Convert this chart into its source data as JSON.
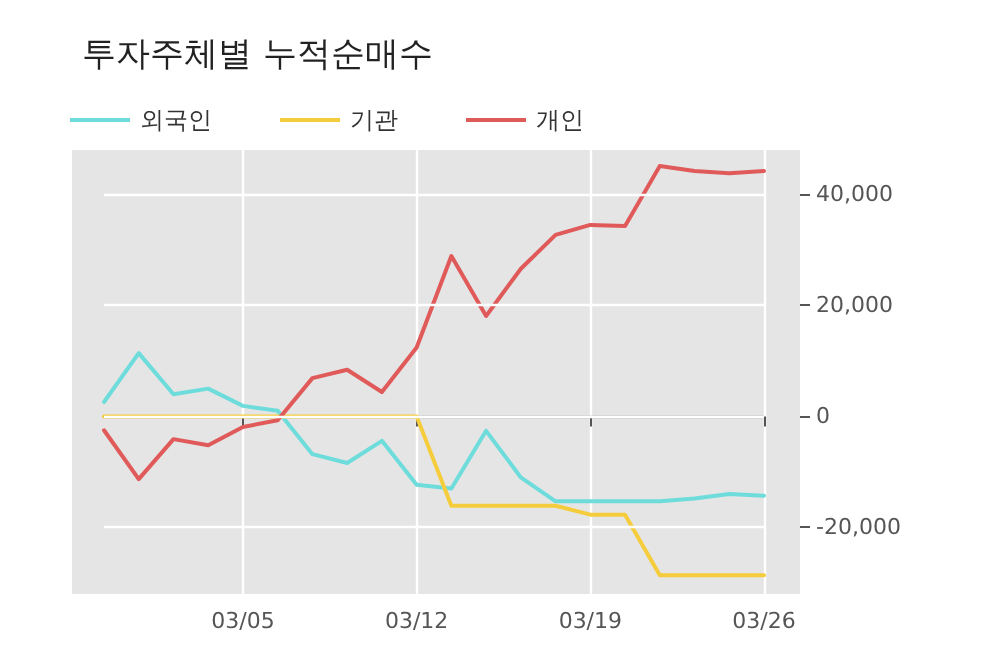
{
  "chart_data": {
    "type": "line",
    "title": "투자주체별 누적순매수",
    "categories": [
      null,
      null,
      null,
      null,
      "03/05",
      null,
      null,
      null,
      null,
      "03/12",
      null,
      null,
      null,
      null,
      "03/19",
      null,
      null,
      null,
      null,
      "03/26"
    ],
    "series": [
      {
        "name": "외국인",
        "color": "#6fdcdc",
        "values": [
          2600,
          11400,
          4000,
          5000,
          1900,
          1000,
          -6800,
          -8400,
          -4400,
          -12300,
          -13000,
          -2600,
          -11000,
          -15300,
          -15300,
          -15300,
          -15300,
          -14800,
          -14000,
          -14300
        ]
      },
      {
        "name": "기관",
        "color": "#f5cd3c",
        "values": [
          0,
          0,
          0,
          0,
          0,
          0,
          0,
          0,
          0,
          0,
          -16100,
          -16100,
          -16100,
          -16100,
          -17700,
          -17700,
          -28600,
          -28600,
          -28600,
          -28600
        ]
      },
      {
        "name": "개인",
        "color": "#e05a5a",
        "values": [
          -2500,
          -11300,
          -4100,
          -5200,
          -1900,
          -700,
          6900,
          8400,
          4400,
          12400,
          28900,
          18100,
          26600,
          32700,
          34500,
          34300,
          45100,
          44200,
          43800,
          44200
        ]
      }
    ],
    "ylim": [
      -32000,
      48000
    ],
    "yticks": [
      {
        "value": -20000,
        "label": "-20,000"
      },
      0,
      {
        "value": 20000,
        "label": "20,000"
      },
      {
        "value": 40000,
        "label": "40,000"
      }
    ],
    "ref_lines": [
      {
        "axis": "y",
        "value": 0,
        "color": "#808080"
      }
    ],
    "grid": true,
    "legend": "top left",
    "marker": "none",
    "line_style": "solid"
  }
}
